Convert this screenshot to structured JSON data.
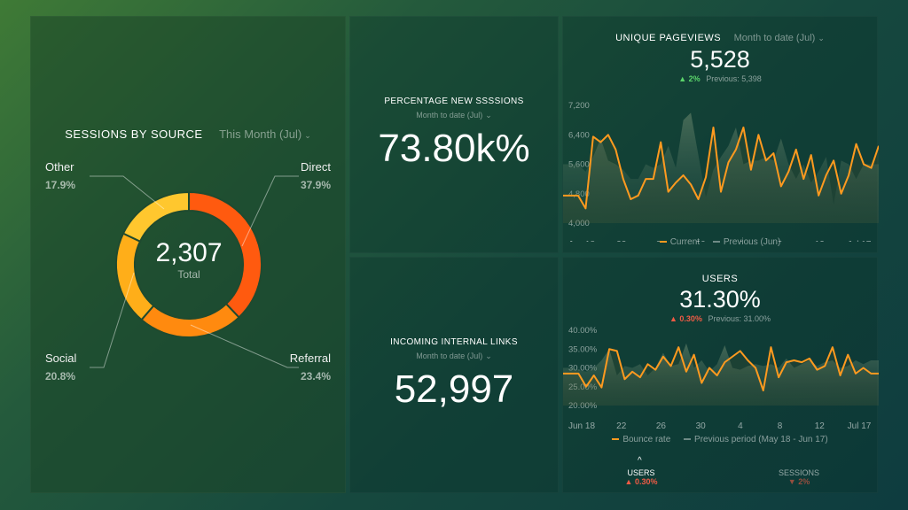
{
  "sessions_by_source": {
    "title": "SESSIONS BY SOURCE",
    "period": "This Month (Jul)",
    "total": "2,307",
    "total_label": "Total",
    "labels": {
      "other": {
        "name": "Other",
        "pct": "17.9%"
      },
      "direct": {
        "name": "Direct",
        "pct": "37.9%"
      },
      "social": {
        "name": "Social",
        "pct": "20.8%"
      },
      "referral": {
        "name": "Referral",
        "pct": "23.4%"
      }
    }
  },
  "percentage_new_sessions": {
    "title": "PERCENTAGE NEW SSSSIONS",
    "period": "Month to date (Jul)",
    "value": "73.80k%"
  },
  "incoming_internal_links": {
    "title": "INCOMING INTERNAL LINKS",
    "period": "Month to date (Jul)",
    "value": "52,997"
  },
  "unique_pageviews": {
    "title": "UNIQUE PAGEVIEWS",
    "period": "Month to date (Jul)",
    "value": "5,528",
    "delta_arrow": "▲",
    "delta": "2%",
    "previous": "Previous: 5,398",
    "legend_current": "Current",
    "legend_previous": "Previous (Jun)"
  },
  "users": {
    "title": "USERS",
    "value": "31.30%",
    "delta_arrow": "▲",
    "delta": "0.30%",
    "previous": "Previous: 31.00%",
    "legend_current": "Bounce rate",
    "legend_previous": "Previous period (May 18 - Jun 17)",
    "tabs": [
      {
        "label": "USERS",
        "delta": "▲ 0.30%"
      },
      {
        "label": "SESSIONS",
        "delta": "▼ 2%"
      }
    ]
  },
  "colors": {
    "direct": "#ff5a0f",
    "referral": "#ff8a0f",
    "social": "#ffae19",
    "other": "#ffc72e",
    "current_line": "#ff9a1f",
    "previous_area": "#4e7467",
    "up": "#5bd56b",
    "down": "#ef5b45"
  },
  "chart_data": [
    {
      "type": "pie",
      "title": "SESSIONS BY SOURCE",
      "categories": [
        "Direct",
        "Referral",
        "Social",
        "Other"
      ],
      "values": [
        37.9,
        23.4,
        20.8,
        17.9
      ],
      "total": 2307
    },
    {
      "type": "line",
      "title": "UNIQUE PAGEVIEWS",
      "x_ticks": [
        "Jun 18",
        "22",
        "26",
        "30",
        "4",
        "8",
        "12",
        "Jul 17"
      ],
      "y_ticks": [
        "7,200",
        "6,400",
        "5,600",
        "4,800",
        "4,000"
      ],
      "ylim": [
        4000,
        7200
      ],
      "series": [
        {
          "name": "Current",
          "values": [
            4750,
            4750,
            4750,
            4400,
            6350,
            6200,
            6400,
            6000,
            5200,
            4650,
            4750,
            5200,
            5200,
            6200,
            4850,
            5100,
            5300,
            5050,
            4650,
            5250,
            6600,
            4850,
            5650,
            6000,
            6600,
            5450,
            6400,
            5700,
            5900,
            5000,
            5400,
            6000,
            5200,
            5850,
            4750,
            5300,
            5700,
            4800,
            5300,
            6150,
            5600,
            5500,
            6100
          ]
        },
        {
          "name": "Previous (Jun)",
          "values": [
            5600,
            5600,
            5600,
            5400,
            5800,
            6300,
            5700,
            5600,
            5450,
            5200,
            5200,
            5600,
            5500,
            5600,
            6100,
            5500,
            6800,
            7000,
            5850,
            4700,
            5450,
            5800,
            6100,
            6600,
            5600,
            5700,
            5700,
            5800,
            5700,
            6300,
            5600,
            5200,
            5600,
            5100,
            5400,
            5800,
            4500,
            5700,
            5600,
            5200,
            5600,
            5600,
            5600
          ]
        }
      ]
    },
    {
      "type": "line",
      "title": "USERS",
      "x_ticks": [
        "Jun 18",
        "22",
        "26",
        "30",
        "4",
        "8",
        "12",
        "Jul 17"
      ],
      "y_ticks": [
        "40.00%",
        "35.00%",
        "30.00%",
        "25.00%",
        "20.00%"
      ],
      "ylim": [
        20,
        40
      ],
      "series": [
        {
          "name": "Bounce rate",
          "values": [
            28.5,
            28.5,
            28.5,
            25.0,
            28.0,
            24.8,
            35.0,
            34.5,
            27.0,
            29.0,
            27.5,
            31.0,
            29.5,
            33.0,
            30.5,
            35.5,
            29.0,
            33.5,
            26.0,
            30.0,
            28.0,
            31.5,
            33.0,
            34.5,
            32.0,
            30.0,
            24.0,
            35.5,
            27.5,
            31.5,
            32.0,
            31.5,
            32.5,
            29.5,
            30.5,
            35.5,
            28.0,
            33.5,
            28.5,
            30.0,
            28.5,
            28.5
          ]
        },
        {
          "name": "Previous period (May 18 - Jun 17)",
          "values": [
            30.0,
            30.0,
            29.5,
            29.0,
            30.0,
            32.0,
            35.0,
            28.0,
            30.5,
            30.0,
            31.0,
            28.0,
            30.0,
            34.0,
            30.5,
            31.0,
            36.5,
            30.0,
            32.0,
            29.0,
            31.0,
            36.0,
            30.0,
            29.5,
            30.5,
            31.0,
            30.5,
            31.0,
            30.0,
            32.5,
            30.0,
            31.0,
            32.0,
            30.5,
            31.5,
            32.0,
            30.0,
            30.5,
            32.0,
            31.0,
            32.0,
            32.0
          ]
        }
      ]
    }
  ]
}
